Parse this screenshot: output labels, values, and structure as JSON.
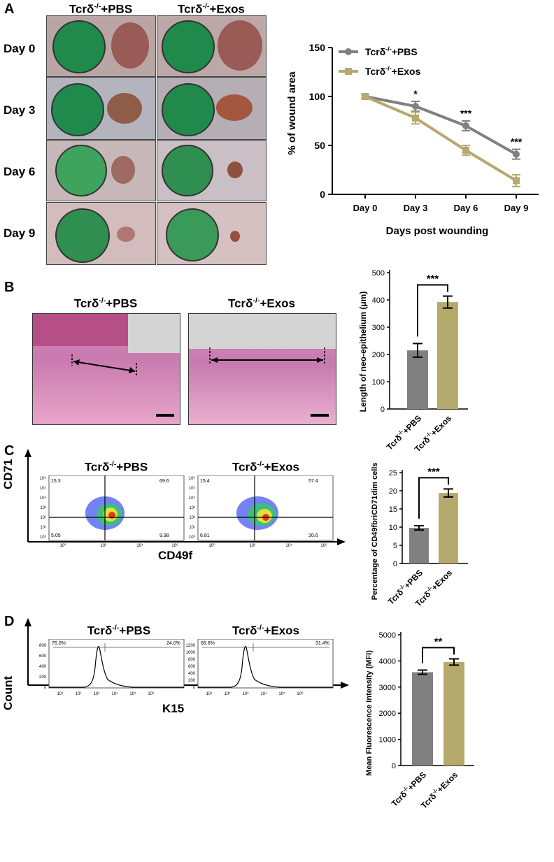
{
  "panels": {
    "a": {
      "letter": "A"
    },
    "b": {
      "letter": "B"
    },
    "c": {
      "letter": "C"
    },
    "d": {
      "letter": "D"
    }
  },
  "groups": {
    "pbs": "Tcrδ-/-+PBS",
    "exos": "Tcrδ-/-+Exos"
  },
  "group_parts": {
    "prefix": "Tcrδ",
    "sup": "-/-",
    "pbs_suffix": "+PBS",
    "exos_suffix": "+Exos"
  },
  "days": [
    "Day 0",
    "Day 3",
    "Day 6",
    "Day 9"
  ],
  "flow": {
    "y_label": "CD71",
    "x_label": "CD49f",
    "pbs_quadrants": [
      "15.3",
      "69.6",
      "5.05",
      "9.98"
    ],
    "exos_quadrants": [
      "15.4",
      "57.4",
      "6.81",
      "20.6"
    ],
    "axis_ticks": [
      "10⁰",
      "10²",
      "10⁴",
      "10⁶"
    ],
    "y_ticks": [
      "10⁰",
      "10¹",
      "10²",
      "10³",
      "10⁴",
      "10⁵",
      "10⁶"
    ]
  },
  "histo": {
    "y_label": "Count",
    "x_label": "K15",
    "pbs_gates": [
      "76.0%",
      "24.0%"
    ],
    "exos_gates": [
      "68.6%",
      "31.4%"
    ],
    "pbs_yticks": [
      "0",
      "200",
      "400",
      "600",
      "800"
    ],
    "exos_yticks": [
      "0",
      "200",
      "400",
      "600",
      "800",
      "1000",
      "1200"
    ],
    "x_ticks": [
      "10¹",
      "10²",
      "10³",
      "10⁴",
      "10⁵",
      "10⁶"
    ]
  },
  "colors": {
    "pbs": "#808080",
    "exos": "#b5a96e",
    "disc_green": "#1f8a4c",
    "wound": "#9a5a4a",
    "he_pink": "#d98bb9"
  },
  "chart_data": [
    {
      "id": "wound_area",
      "type": "line",
      "title": "",
      "xlabel": "Days post wounding",
      "ylabel": "% of wound area",
      "categories": [
        "Day 0",
        "Day 3",
        "Day 6",
        "Day 9"
      ],
      "ylim": [
        0,
        150
      ],
      "yticks": [
        "0",
        "50",
        "100",
        "150"
      ],
      "series": [
        {
          "name": "Tcrδ-/-+PBS",
          "values": [
            100,
            90,
            70,
            41
          ],
          "errors": [
            2,
            5,
            5,
            5
          ]
        },
        {
          "name": "Tcrδ-/-+Exos",
          "values": [
            100,
            78,
            45,
            14
          ],
          "errors": [
            2,
            6,
            5,
            6
          ]
        }
      ],
      "annotations": [
        "",
        "*",
        "***",
        "***"
      ],
      "legend": "top-left"
    },
    {
      "id": "neo_epithelium",
      "type": "bar",
      "ylabel": "Length of neo-epithelium (μm)",
      "categories": [
        "Tcrδ-/-+PBS",
        "Tcrδ-/-+Exos"
      ],
      "values": [
        215,
        392
      ],
      "errors": [
        25,
        22
      ],
      "ylim": [
        0,
        500
      ],
      "yticks": [
        "0",
        "100",
        "200",
        "300",
        "400",
        "500"
      ],
      "significance": "***"
    },
    {
      "id": "cd49f_cd71",
      "type": "bar",
      "ylabel": "Percentage of CD49fbriCD71dim cells",
      "categories": [
        "Tcrδ-/-+PBS",
        "Tcrδ-/-+Exos"
      ],
      "values": [
        9.8,
        19.4
      ],
      "errors": [
        0.6,
        1.1
      ],
      "ylim": [
        0,
        25
      ],
      "yticks": [
        "0",
        "5",
        "10",
        "15",
        "20",
        "25"
      ],
      "significance": "***"
    },
    {
      "id": "k15_mfi",
      "type": "bar",
      "ylabel": "Mean Fluorescence Intensity (MFI)",
      "categories": [
        "Tcrδ-/-+PBS",
        "Tcrδ-/-+Exos"
      ],
      "values": [
        3570,
        3960
      ],
      "errors": [
        80,
        120
      ],
      "ylim": [
        0,
        5000
      ],
      "yticks": [
        "0",
        "1000",
        "2000",
        "3000",
        "4000",
        "5000"
      ],
      "significance": "**"
    }
  ]
}
